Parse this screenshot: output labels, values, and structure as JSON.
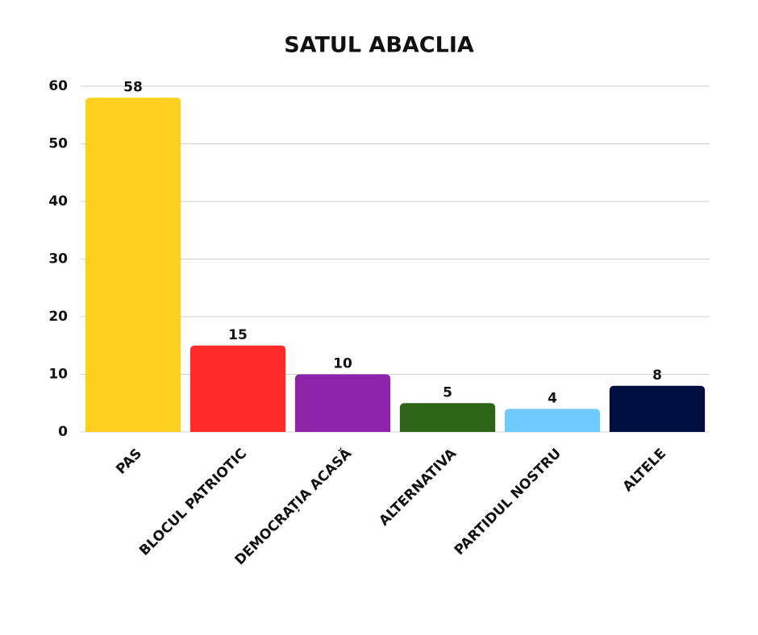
{
  "chart_data": {
    "type": "bar",
    "title": "SATUL ABACLIA",
    "categories": [
      "PAS",
      "BLOCUL PATRIOTIC",
      "DEMOCRAȚIA ACASĂ",
      "ALTERNATIVA",
      "PARTIDUL NOSTRU",
      "ALTELE"
    ],
    "values": [
      58,
      15,
      10,
      5,
      4,
      8
    ],
    "colors": [
      "#fdd01f",
      "#ff2a2a",
      "#8e24aa",
      "#2e6418",
      "#6fcbff",
      "#000d3f"
    ],
    "ylim": [
      0,
      60
    ],
    "yticks": [
      0,
      10,
      20,
      30,
      40,
      50,
      60
    ],
    "grid": true
  }
}
